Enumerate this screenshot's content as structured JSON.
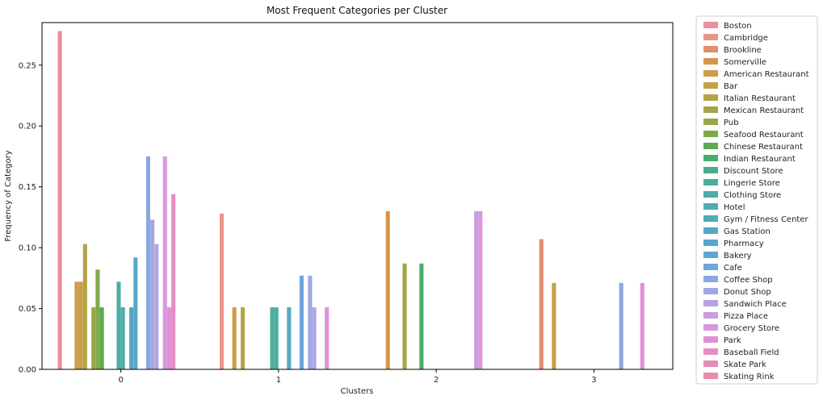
{
  "chart_data": {
    "type": "bar",
    "title": "Most Frequent Categories per Cluster",
    "xlabel": "Clusters",
    "ylabel": "Frequency of Category",
    "categories": [
      "0",
      "1",
      "2",
      "3"
    ],
    "ylim": [
      0,
      0.285
    ],
    "yticks": [
      "0.00",
      "0.05",
      "0.10",
      "0.15",
      "0.20",
      "0.25"
    ],
    "grid": false,
    "legend_position": "outside-right",
    "series": [
      {
        "name": "Boston",
        "color": "#ea8f9c",
        "values": [
          0.278,
          0,
          0,
          0
        ]
      },
      {
        "name": "Cambridge",
        "color": "#e9968a",
        "values": [
          0,
          0.128,
          0,
          0
        ]
      },
      {
        "name": "Brookline",
        "color": "#e38d6c",
        "values": [
          0,
          0,
          0,
          0.107
        ]
      },
      {
        "name": "Somerville",
        "color": "#d6954c",
        "values": [
          0,
          0,
          0.13,
          0
        ]
      },
      {
        "name": "American Restaurant",
        "color": "#cf9c49",
        "values": [
          0.072,
          0.051,
          0,
          0
        ]
      },
      {
        "name": "Bar",
        "color": "#c4a147",
        "values": [
          0.072,
          0,
          0,
          0.071
        ]
      },
      {
        "name": "Italian Restaurant",
        "color": "#b5a447",
        "values": [
          0.103,
          0.051,
          0,
          0
        ]
      },
      {
        "name": "Mexican Restaurant",
        "color": "#a4a646",
        "values": [
          0,
          0,
          0.087,
          0
        ]
      },
      {
        "name": "Pub",
        "color": "#96a848",
        "values": [
          0.051,
          0,
          0,
          0
        ]
      },
      {
        "name": "Seafood Restaurant",
        "color": "#7ea94a",
        "values": [
          0.082,
          0,
          0,
          0
        ]
      },
      {
        "name": "Chinese Restaurant",
        "color": "#5fab4f",
        "values": [
          0.051,
          0,
          0,
          0
        ]
      },
      {
        "name": "Indian Restaurant",
        "color": "#4aac6b",
        "values": [
          0,
          0,
          0.087,
          0
        ]
      },
      {
        "name": "Discount Store",
        "color": "#4bad85",
        "values": [
          0,
          0,
          0,
          0
        ]
      },
      {
        "name": "Lingerie Store",
        "color": "#4cad98",
        "values": [
          0,
          0.051,
          0,
          0
        ]
      },
      {
        "name": "Clothing Store",
        "color": "#4eaca6",
        "values": [
          0.072,
          0.051,
          0,
          0
        ]
      },
      {
        "name": "Hotel",
        "color": "#50abb0",
        "values": [
          0.051,
          0,
          0,
          0
        ]
      },
      {
        "name": "Gym / Fitness Center",
        "color": "#52aab8",
        "values": [
          0,
          0,
          0,
          0
        ]
      },
      {
        "name": "Gas Station",
        "color": "#54a9c0",
        "values": [
          0.051,
          0.051,
          0,
          0
        ]
      },
      {
        "name": "Pharmacy",
        "color": "#58a7c9",
        "values": [
          0.092,
          0,
          0,
          0
        ]
      },
      {
        "name": "Bakery",
        "color": "#5ea5d3",
        "values": [
          0,
          0,
          0,
          0
        ]
      },
      {
        "name": "Cafe",
        "color": "#70a4dc",
        "values": [
          0,
          0.077,
          0,
          0
        ]
      },
      {
        "name": "Coffee Shop",
        "color": "#8aa7e0",
        "values": [
          0.175,
          0,
          0,
          0.071
        ]
      },
      {
        "name": "Donut Shop",
        "color": "#a0a8e4",
        "values": [
          0.123,
          0.077,
          0,
          0
        ]
      },
      {
        "name": "Sandwich Place",
        "color": "#b5a4e3",
        "values": [
          0.103,
          0.051,
          0,
          0
        ]
      },
      {
        "name": "Pizza Place",
        "color": "#c99de0",
        "values": [
          0,
          0,
          0.13,
          0
        ]
      },
      {
        "name": "Grocery Store",
        "color": "#d997dc",
        "values": [
          0.175,
          0,
          0.13,
          0
        ]
      },
      {
        "name": "Park",
        "color": "#e190d6",
        "values": [
          0.051,
          0.051,
          0,
          0.071
        ]
      },
      {
        "name": "Baseball Field",
        "color": "#e48ec5",
        "values": [
          0.144,
          0,
          0,
          0
        ]
      },
      {
        "name": "Skate Park",
        "color": "#e68ab8",
        "values": [
          0,
          0,
          0,
          0
        ]
      },
      {
        "name": "Skating Rink",
        "color": "#e88ea8",
        "values": [
          0,
          0,
          0,
          0
        ]
      }
    ]
  }
}
